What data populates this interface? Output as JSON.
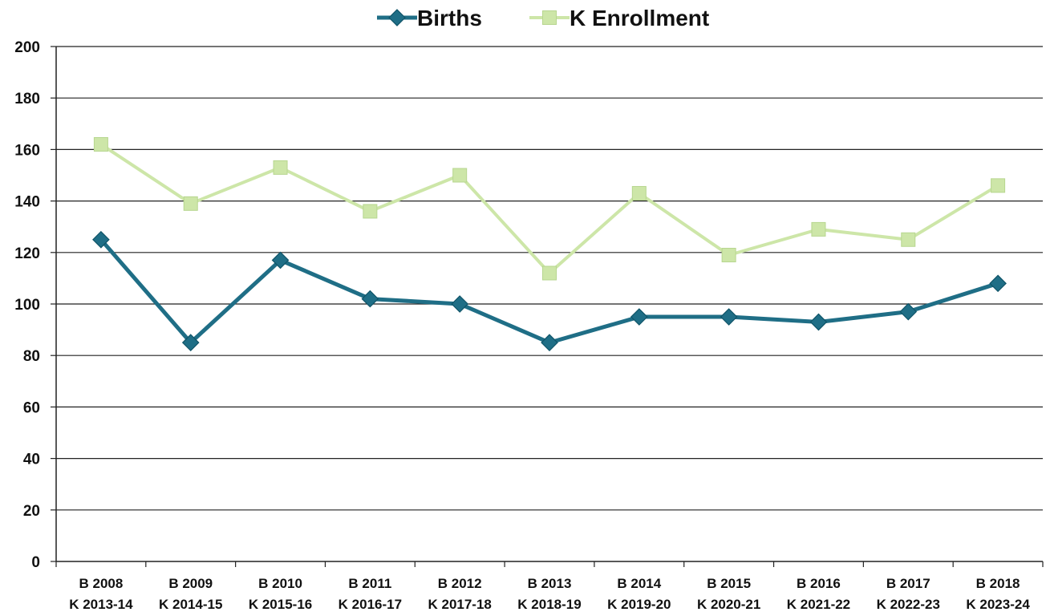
{
  "chart_data": {
    "type": "line",
    "title": "",
    "xlabel": "",
    "ylabel": "",
    "ylim": [
      0,
      200
    ],
    "yticks": [
      0,
      20,
      40,
      60,
      80,
      100,
      120,
      140,
      160,
      180,
      200
    ],
    "grid": true,
    "legend_position": "top",
    "categories": [
      [
        "B 2008",
        "K 2013-14"
      ],
      [
        "B 2009",
        "K 2014-15"
      ],
      [
        "B 2010",
        "K 2015-16"
      ],
      [
        "B 2011",
        "K 2016-17"
      ],
      [
        "B 2012",
        "K 2017-18"
      ],
      [
        "B 2013",
        "K 2018-19"
      ],
      [
        "B 2014",
        "K 2019-20"
      ],
      [
        "B 2015",
        "K 2020-21"
      ],
      [
        "B 2016",
        "K 2021-22"
      ],
      [
        "B 2017",
        "K 2022-23"
      ],
      [
        "B 2018",
        "K 2023-24"
      ]
    ],
    "series": [
      {
        "name": "Births",
        "color": "#1f6e86",
        "marker": "diamond",
        "values": [
          125,
          85,
          117,
          102,
          100,
          85,
          95,
          95,
          93,
          97,
          108
        ]
      },
      {
        "name": "K Enrollment",
        "color": "#cde6a8",
        "marker": "square",
        "values": [
          162,
          139,
          153,
          136,
          150,
          112,
          143,
          119,
          129,
          125,
          146
        ]
      }
    ]
  }
}
